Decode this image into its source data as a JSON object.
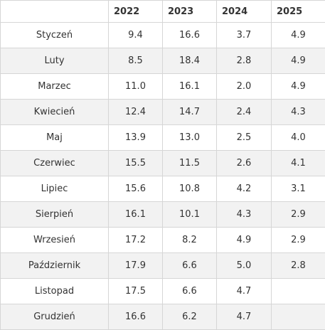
{
  "table": {
    "columns": [
      "",
      "2022",
      "2023",
      "2024",
      "2025"
    ],
    "rows": [
      {
        "month": "Styczeń",
        "values": [
          "9.4",
          "16.6",
          "3.7",
          "4.9"
        ]
      },
      {
        "month": "Luty",
        "values": [
          "8.5",
          "18.4",
          "2.8",
          "4.9"
        ]
      },
      {
        "month": "Marzec",
        "values": [
          "11.0",
          "16.1",
          "2.0",
          "4.9"
        ]
      },
      {
        "month": "Kwiecień",
        "values": [
          "12.4",
          "14.7",
          "2.4",
          "4.3"
        ]
      },
      {
        "month": "Maj",
        "values": [
          "13.9",
          "13.0",
          "2.5",
          "4.0"
        ]
      },
      {
        "month": "Czerwiec",
        "values": [
          "15.5",
          "11.5",
          "2.6",
          "4.1"
        ]
      },
      {
        "month": "Lipiec",
        "values": [
          "15.6",
          "10.8",
          "4.2",
          "3.1"
        ]
      },
      {
        "month": "Sierpień",
        "values": [
          "16.1",
          "10.1",
          "4.3",
          "2.9"
        ]
      },
      {
        "month": "Wrzesień",
        "values": [
          "17.2",
          "8.2",
          "4.9",
          "2.9"
        ]
      },
      {
        "month": "Październik",
        "values": [
          "17.9",
          "6.6",
          "5.0",
          "2.8"
        ]
      },
      {
        "month": "Listopad",
        "values": [
          "17.5",
          "6.6",
          "4.7",
          ""
        ]
      },
      {
        "month": "Grudzień",
        "values": [
          "16.6",
          "6.2",
          "4.7",
          ""
        ]
      }
    ]
  }
}
